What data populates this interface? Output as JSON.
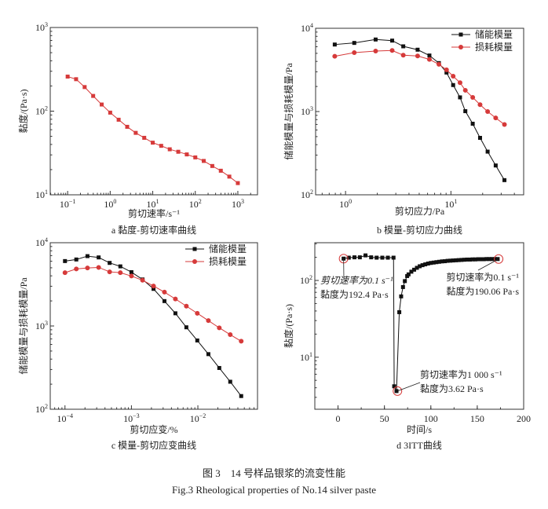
{
  "caption": {
    "cn": "图 3　14 号样品银浆的流变性能",
    "en": "Fig.3 Rheological properties of No.14 silver paste"
  },
  "chart_data": [
    {
      "id": "a",
      "type": "line",
      "title": "a  黏度-剪切速率曲线",
      "xlabel": "剪切速率/s⁻¹",
      "ylabel": "黏度/(Pa·s)",
      "xscale": "log",
      "yscale": "log",
      "xlim": [
        0.039,
        2900
      ],
      "ylim": [
        10,
        1000
      ],
      "x_ticks": [
        {
          "base": "10",
          "exp": "−1",
          "v": 0.1
        },
        {
          "base": "10",
          "exp": "0",
          "v": 1
        },
        {
          "base": "10",
          "exp": "1",
          "v": 10
        },
        {
          "base": "10",
          "exp": "2",
          "v": 100
        },
        {
          "base": "10",
          "exp": "3",
          "v": 1000
        }
      ],
      "y_ticks": [
        {
          "base": "10",
          "exp": "1",
          "v": 10
        },
        {
          "base": "10",
          "exp": "2",
          "v": 100
        },
        {
          "base": "10",
          "exp": "3",
          "v": 1000
        }
      ],
      "grid": false,
      "series": [
        {
          "color": "#d63a3a",
          "marker": "square",
          "x": [
            0.1,
            0.158,
            0.251,
            0.398,
            0.631,
            1,
            1.58,
            2.51,
            3.98,
            6.31,
            10,
            15.8,
            25.1,
            39.8,
            63.1,
            100,
            158,
            251,
            398,
            631,
            1000
          ],
          "y": [
            259,
            241,
            194,
            152,
            120,
            96,
            79,
            65,
            55,
            48,
            42,
            38.5,
            35,
            32.7,
            30.4,
            28,
            25.4,
            22.1,
            19.4,
            16.5,
            13.8
          ]
        }
      ]
    },
    {
      "id": "b",
      "type": "line",
      "title": "b  模量-剪切应力曲线",
      "xlabel": "剪切应力/Pa",
      "ylabel": "储能模量与损耗模量/Pa",
      "xscale": "log",
      "yscale": "log",
      "xlim": [
        0.52,
        49
      ],
      "ylim": [
        100,
        10000
      ],
      "x_ticks": [
        {
          "base": "10",
          "exp": "0",
          "v": 1
        },
        {
          "base": "10",
          "exp": "1",
          "v": 10
        }
      ],
      "y_ticks": [
        {
          "base": "10",
          "exp": "2",
          "v": 100
        },
        {
          "base": "10",
          "exp": "3",
          "v": 1000
        },
        {
          "base": "10",
          "exp": "4",
          "v": 10000
        }
      ],
      "grid": false,
      "legend": "top-right",
      "series": [
        {
          "name": "储能模量",
          "color": "#111111",
          "marker": "square",
          "x": [
            0.79,
            1.21,
            1.93,
            2.77,
            3.53,
            4.83,
            6.25,
            7.69,
            9.08,
            10.5,
            12.2,
            13.7,
            16.1,
            18.9,
            22.3,
            26.6,
            32.2
          ],
          "y": [
            6380,
            6670,
            7330,
            7110,
            6070,
            5530,
            4710,
            3820,
            2940,
            2080,
            1480,
            1010,
            714,
            483,
            330,
            225,
            150
          ]
        },
        {
          "name": "损耗模量",
          "color": "#d63a3a",
          "marker": "circle",
          "x": [
            0.79,
            1.21,
            1.93,
            2.77,
            3.53,
            4.83,
            6.25,
            7.69,
            9.08,
            10.5,
            12.2,
            13.7,
            16.1,
            18.9,
            22.3,
            26.6,
            32.2
          ],
          "y": [
            4610,
            5100,
            5330,
            5410,
            4750,
            4650,
            4230,
            3690,
            3170,
            2660,
            2220,
            1800,
            1480,
            1210,
            1000,
            838,
            699
          ]
        }
      ]
    },
    {
      "id": "c",
      "type": "line",
      "title": "c  模量-剪切应变曲线",
      "xlabel": "剪切应变/%",
      "ylabel": "储能模量与损耗模量/Pa",
      "xscale": "log",
      "yscale": "log",
      "xlim": [
        6e-05,
        0.079
      ],
      "ylim": [
        100,
        10000
      ],
      "x_ticks": [
        {
          "base": "10",
          "exp": "−4",
          "v": 0.0001
        },
        {
          "base": "10",
          "exp": "−3",
          "v": 0.001
        },
        {
          "base": "10",
          "exp": "−2",
          "v": 0.01
        }
      ],
      "y_ticks": [
        {
          "base": "10",
          "exp": "2",
          "v": 100
        },
        {
          "base": "10",
          "exp": "3",
          "v": 1000
        },
        {
          "base": "10",
          "exp": "4",
          "v": 10000
        }
      ],
      "grid": false,
      "legend": "top-right",
      "series": [
        {
          "name": "储能模量",
          "color": "#111111",
          "marker": "square",
          "x": [
            0.0001,
            0.000148,
            0.000218,
            0.000321,
            0.00047,
            0.000681,
            0.001,
            0.00147,
            0.00215,
            0.00314,
            0.00459,
            0.00671,
            0.0098,
            0.0144,
            0.021,
            0.0307,
            0.0449
          ],
          "y": [
            6020,
            6290,
            6900,
            6660,
            5720,
            5200,
            4430,
            3620,
            2790,
            1990,
            1420,
            964,
            670,
            459,
            313,
            214,
            144
          ]
        },
        {
          "name": "损耗模量",
          "color": "#d63a3a",
          "marker": "circle",
          "x": [
            0.0001,
            0.000148,
            0.000218,
            0.000321,
            0.00047,
            0.000681,
            0.001,
            0.00147,
            0.00215,
            0.00314,
            0.00459,
            0.00671,
            0.0098,
            0.0144,
            0.021,
            0.0307,
            0.0449
          ],
          "y": [
            4370,
            4840,
            4980,
            5050,
            4470,
            4370,
            3980,
            3540,
            3020,
            2550,
            2110,
            1730,
            1420,
            1160,
            950,
            787,
            656
          ]
        }
      ]
    },
    {
      "id": "d",
      "type": "scatter",
      "title": "d  3ITT曲线",
      "xlabel": "时间/s",
      "ylabel": "黏度/(Pa·s)",
      "xscale": "linear",
      "yscale": "log",
      "xlim": [
        -25,
        200
      ],
      "ylim": [
        2.1,
        310
      ],
      "x_ticks": [
        {
          "base": "0",
          "v": 0
        },
        {
          "base": "50",
          "v": 50
        },
        {
          "base": "100",
          "v": 100
        },
        {
          "base": "150",
          "v": 150
        },
        {
          "base": "200",
          "v": 200
        }
      ],
      "y_ticks": [
        {
          "base": "10",
          "exp": "1",
          "v": 10
        },
        {
          "base": "10",
          "exp": "2",
          "v": 100
        }
      ],
      "grid": false,
      "series": [
        {
          "color": "#111111",
          "marker": "square",
          "connect": true,
          "x": [
            6,
            11.6,
            17.7,
            23.5,
            29.6,
            35.7,
            41.6,
            47.7,
            53.7,
            59.8,
            60.5,
            63,
            66,
            68,
            70,
            72,
            74.5,
            76,
            79,
            82,
            85,
            88,
            91,
            94,
            97,
            100,
            103,
            106,
            109,
            112,
            115,
            118,
            121,
            124,
            127,
            130,
            133,
            136,
            139,
            142,
            145,
            148,
            151,
            154,
            157,
            160,
            163,
            166,
            169,
            172
          ],
          "y": [
            192.4,
            198,
            200,
            200,
            212,
            200,
            198,
            198,
            198,
            198,
            4.18,
            3.62,
            38.6,
            62,
            82,
            98,
            114,
            120,
            130,
            138,
            146,
            153,
            158,
            162,
            166,
            169,
            171,
            173,
            175,
            177,
            178,
            180,
            181,
            182,
            183,
            184,
            185,
            186,
            187,
            187,
            188,
            188,
            189,
            189,
            189,
            190,
            190,
            190,
            190,
            190.06
          ]
        }
      ],
      "annotations": [
        {
          "x": 6,
          "y": 192.4,
          "line1": "剪切速率为0.1 s⁻¹",
          "line2": "黏度为192.4 Pa·s"
        },
        {
          "x": 173,
          "y": 190.06,
          "line1": "剪切速率为0.1 s⁻¹",
          "line2": "黏度为190.06 Pa·s"
        },
        {
          "x": 64,
          "y": 3.62,
          "line1": "剪切速率为1 000 s⁻¹",
          "line2": "黏度为3.62 Pa·s"
        }
      ],
      "highlight_color": "#d63a3a"
    }
  ]
}
